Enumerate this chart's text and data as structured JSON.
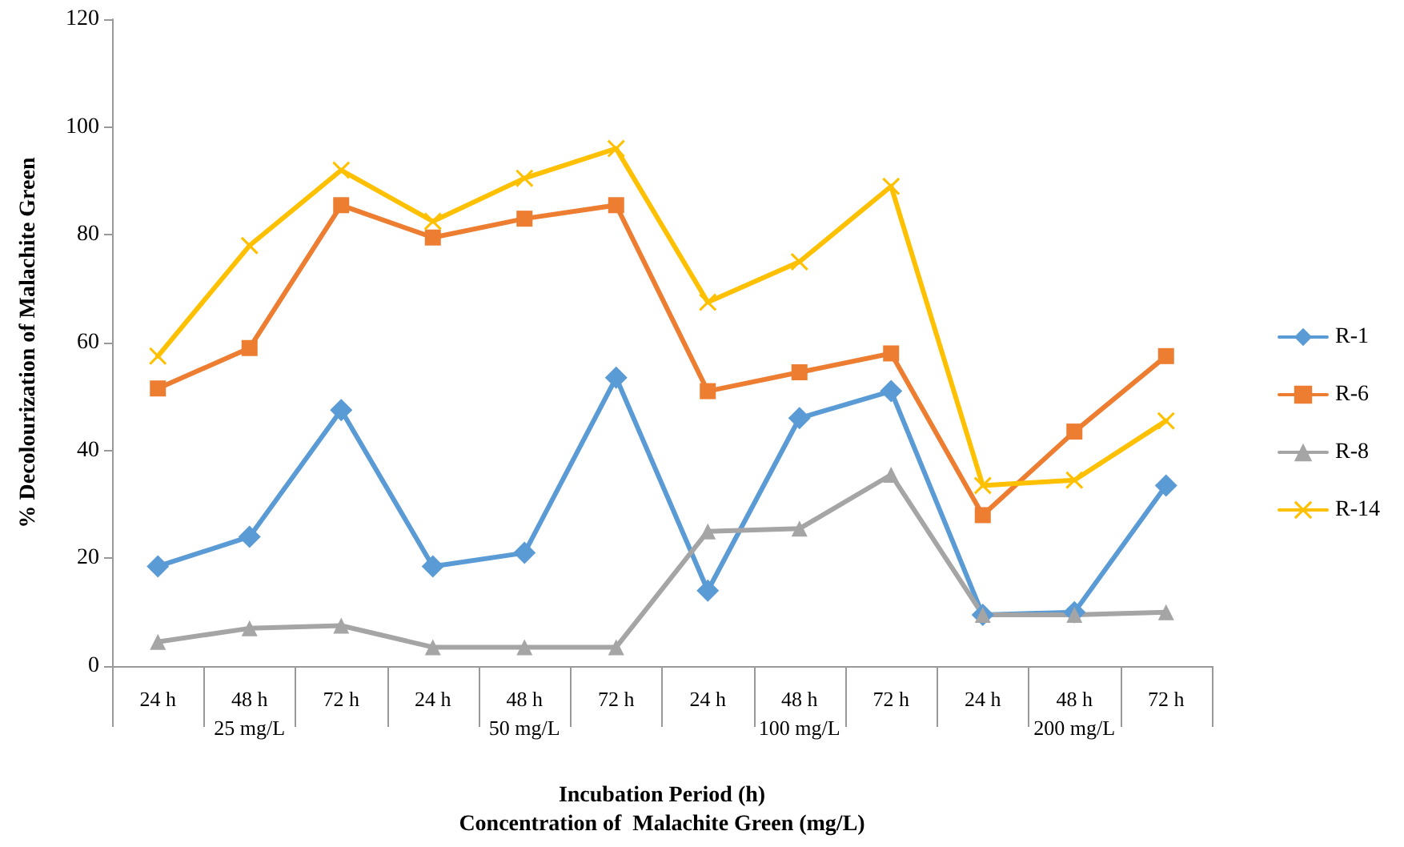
{
  "chart_data": {
    "type": "line",
    "ylabel": "% Decolourization of Malachite Green",
    "xlabel": "Incubation Period (h)\nConcentration of  Malachite Green (mg/L)",
    "categories": [
      "24 h",
      "48 h",
      "72 h",
      "24 h",
      "48 h",
      "72 h",
      "24 h",
      "48 h",
      "72 h",
      "24 h",
      "48 h",
      "72 h"
    ],
    "annotations": [
      "25 mg/L",
      "50 mg/L",
      "100 mg/L",
      "200 mg/L"
    ],
    "ylim": [
      0,
      120
    ],
    "yticks": [
      0,
      20,
      40,
      60,
      80,
      100,
      120
    ],
    "grid": false,
    "legend": "right",
    "series": [
      {
        "name": "R-1",
        "color": "#5b9bd5",
        "marker": "diamond",
        "values": [
          18.5,
          24,
          47.5,
          18.5,
          21,
          53.5,
          14,
          46,
          51,
          9.5,
          10,
          33.5
        ]
      },
      {
        "name": "R-6",
        "color": "#ed7d31",
        "marker": "square",
        "values": [
          51.5,
          59,
          85.5,
          79.5,
          83,
          85.5,
          51,
          54.5,
          58,
          28,
          43.5,
          57.5
        ]
      },
      {
        "name": "R-8",
        "color": "#a5a5a5",
        "marker": "triangle",
        "values": [
          4.5,
          7,
          7.5,
          3.5,
          3.5,
          3.5,
          25,
          25.5,
          35.5,
          9.5,
          9.5,
          10
        ]
      },
      {
        "name": "R-14",
        "color": "#ffc000",
        "marker": "cross",
        "values": [
          57.5,
          78,
          92,
          82.5,
          90.5,
          96,
          67.5,
          75,
          89,
          33.5,
          34.5,
          45.5
        ]
      }
    ]
  }
}
